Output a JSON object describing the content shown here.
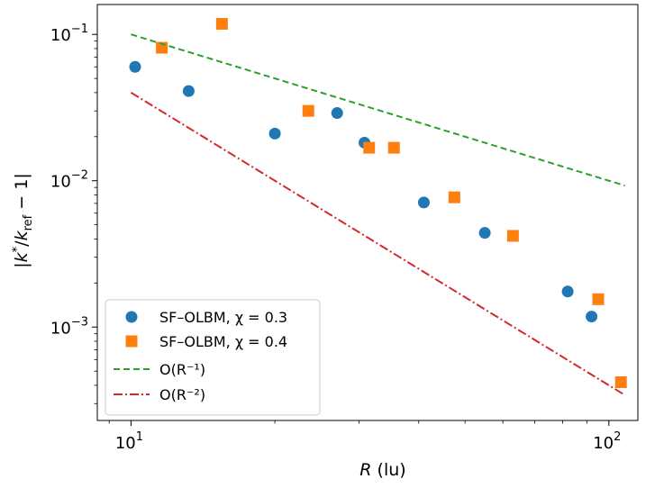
{
  "chart_data": {
    "type": "scatter",
    "xscale": "log",
    "yscale": "log",
    "xlim": [
      8.5,
      115
    ],
    "ylim": [
      0.00023,
      0.16
    ],
    "xlabel": "R (lu)",
    "ylabel": "|k*/k_ref − 1|",
    "x_ticks": [
      {
        "value": 10,
        "base": "10",
        "exp": "1"
      },
      {
        "value": 100,
        "base": "10",
        "exp": "2"
      }
    ],
    "y_ticks": [
      {
        "value": 0.001,
        "base": "10",
        "exp": "−3"
      },
      {
        "value": 0.01,
        "base": "10",
        "exp": "−2"
      },
      {
        "value": 0.1,
        "base": "10",
        "exp": "−1"
      }
    ],
    "series": [
      {
        "name": "SF–OLBM, χ = 0.3",
        "marker": "circle",
        "color": "#1f77b4",
        "points": [
          [
            10.2,
            0.06
          ],
          [
            13.2,
            0.041
          ],
          [
            20.0,
            0.021
          ],
          [
            27.0,
            0.029
          ],
          [
            30.8,
            0.0182
          ],
          [
            41.0,
            0.0071
          ],
          [
            55.0,
            0.0044
          ],
          [
            82.0,
            0.00175
          ],
          [
            92.0,
            0.00118
          ]
        ]
      },
      {
        "name": "SF–OLBM, χ = 0.4",
        "marker": "square",
        "color": "#ff7f0e",
        "points": [
          [
            11.6,
            0.081
          ],
          [
            15.5,
            0.118
          ],
          [
            23.5,
            0.03
          ],
          [
            31.5,
            0.0168
          ],
          [
            35.5,
            0.0168
          ],
          [
            47.5,
            0.0077
          ],
          [
            63.0,
            0.0042
          ],
          [
            95.0,
            0.00155
          ],
          [
            106.0,
            0.00042
          ]
        ]
      },
      {
        "name": "O(R⁻¹)",
        "style": "dashed",
        "color": "#2ca02c",
        "line": [
          [
            10,
            0.1
          ],
          [
            108,
            0.00926
          ]
        ]
      },
      {
        "name": "O(R⁻²)",
        "style": "dashdot",
        "color": "#d62728",
        "line": [
          [
            10,
            0.04
          ],
          [
            108,
            0.000343
          ]
        ]
      }
    ],
    "legend": {
      "placement": "lower-left",
      "entries": [
        {
          "label": "SF–OLBM, χ = 0.3"
        },
        {
          "label": "SF–OLBM, χ = 0.4"
        },
        {
          "label": "O(R⁻¹)"
        },
        {
          "label": "O(R⁻²)"
        }
      ]
    }
  }
}
